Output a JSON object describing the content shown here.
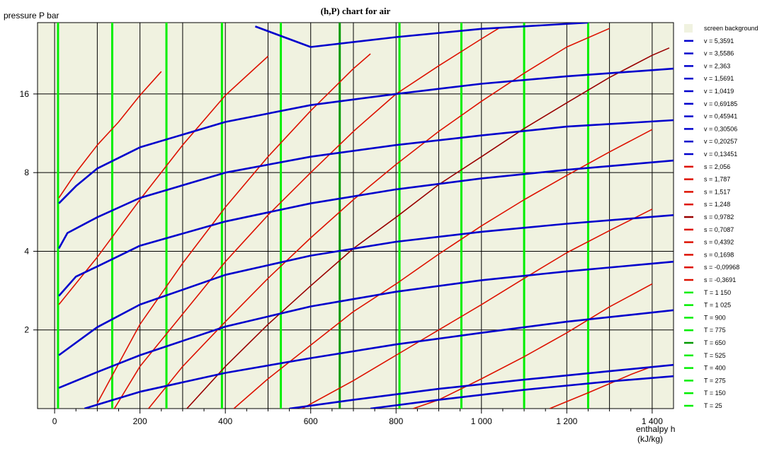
{
  "chart_data": {
    "type": "line",
    "title": "(h,P) chart for air",
    "xlabel_line1": "enthalpy  h",
    "xlabel_line2": "(kJ/kg)",
    "ylabel": "pressure  P bar",
    "xlim": [
      -40,
      1450
    ],
    "ylim": [
      1,
      30
    ],
    "y_scale": "log",
    "grid": true,
    "legend_position": "right",
    "x_ticks": [
      {
        "value": 0,
        "label": "0"
      },
      {
        "value": 200,
        "label": "200"
      },
      {
        "value": 400,
        "label": "400"
      },
      {
        "value": 600,
        "label": "600"
      },
      {
        "value": 800,
        "label": "800"
      },
      {
        "value": 1000,
        "label": "1 000"
      },
      {
        "value": 1200,
        "label": "1 200"
      },
      {
        "value": 1400,
        "label": "1 400"
      }
    ],
    "y_ticks": [
      {
        "value": 2,
        "label": "2"
      },
      {
        "value": 4,
        "label": "4"
      },
      {
        "value": 8,
        "label": "8"
      },
      {
        "value": 16,
        "label": "16"
      }
    ],
    "colors": {
      "background": "#F0F2E0",
      "isochore": "#0000CC",
      "isentrope": "#DD1100",
      "isentrope_dark": "#990000",
      "isotherm": "#00EE00",
      "isotherm_dark": "#009900",
      "grid": "#000000"
    },
    "legend": [
      {
        "label": "screen background",
        "kind": "swatch",
        "color": "#F0F2E0"
      },
      {
        "label": "v = 5,3591",
        "color": "#0000CC"
      },
      {
        "label": "v = 3,5586",
        "color": "#0000CC"
      },
      {
        "label": "v = 2,363",
        "color": "#0000CC"
      },
      {
        "label": "v = 1,5691",
        "color": "#0000CC"
      },
      {
        "label": "v = 1,0419",
        "color": "#0000CC"
      },
      {
        "label": "v = 0,69185",
        "color": "#0000CC"
      },
      {
        "label": "v = 0,45941",
        "color": "#0000CC"
      },
      {
        "label": "v = 0,30506",
        "color": "#0000CC"
      },
      {
        "label": "v = 0,20257",
        "color": "#0000CC"
      },
      {
        "label": "v = 0,13451",
        "color": "#0000CC"
      },
      {
        "label": "s = 2,056",
        "color": "#DD1100"
      },
      {
        "label": "s = 1,787",
        "color": "#DD1100"
      },
      {
        "label": "s = 1,517",
        "color": "#DD1100"
      },
      {
        "label": "s = 1,248",
        "color": "#DD1100"
      },
      {
        "label": "s = 0,9782",
        "color": "#990000"
      },
      {
        "label": "s = 0,7087",
        "color": "#DD1100"
      },
      {
        "label": "s = 0,4392",
        "color": "#DD1100"
      },
      {
        "label": "s = 0,1698",
        "color": "#DD1100"
      },
      {
        "label": "s = -0,09968",
        "color": "#DD1100"
      },
      {
        "label": "s = -0,3691",
        "color": "#DD1100"
      },
      {
        "label": "T = 1 150",
        "color": "#00EE00"
      },
      {
        "label": "T = 1 025",
        "color": "#00EE00"
      },
      {
        "label": "T = 900",
        "color": "#00EE00"
      },
      {
        "label": "T = 775",
        "color": "#00EE00"
      },
      {
        "label": "T = 650",
        "color": "#009900"
      },
      {
        "label": "T = 525",
        "color": "#00EE00"
      },
      {
        "label": "T = 400",
        "color": "#00EE00"
      },
      {
        "label": "T = 275",
        "color": "#00EE00"
      },
      {
        "label": "T = 150",
        "color": "#00EE00"
      },
      {
        "label": "T = 25",
        "color": "#00EE00"
      }
    ],
    "isotherms": [
      {
        "name": "T = 25",
        "h": 8,
        "color": "#00EE00"
      },
      {
        "name": "T = 150",
        "h": 135,
        "color": "#00EE00"
      },
      {
        "name": "T = 275",
        "h": 262,
        "color": "#00EE00"
      },
      {
        "name": "T = 400",
        "h": 392,
        "color": "#00EE00"
      },
      {
        "name": "T = 525",
        "h": 530,
        "color": "#00EE00"
      },
      {
        "name": "T = 650",
        "h": 668,
        "color": "#009900"
      },
      {
        "name": "T = 775",
        "h": 808,
        "color": "#00EE00"
      },
      {
        "name": "T = 900",
        "h": 953,
        "color": "#00EE00"
      },
      {
        "name": "T = 1 025",
        "h": 1100,
        "color": "#00EE00"
      },
      {
        "name": "T = 1 150",
        "h": 1250,
        "color": "#00EE00"
      }
    ],
    "isochores": [
      {
        "name": "v = 5,3591",
        "color": "#0000CC",
        "points": [
          [
            740,
            1
          ],
          [
            900,
            1.08
          ],
          [
            1100,
            1.18
          ],
          [
            1300,
            1.27
          ],
          [
            1450,
            1.33
          ]
        ]
      },
      {
        "name": "v = 3,5586",
        "color": "#0000CC",
        "points": [
          [
            550,
            1
          ],
          [
            700,
            1.08
          ],
          [
            900,
            1.19
          ],
          [
            1100,
            1.29
          ],
          [
            1300,
            1.39
          ],
          [
            1450,
            1.47
          ]
        ]
      },
      {
        "name": "v = 2,363",
        "color": "#0000CC",
        "points": [
          [
            70,
            1
          ],
          [
            200,
            1.16
          ],
          [
            400,
            1.37
          ],
          [
            600,
            1.56
          ],
          [
            800,
            1.76
          ],
          [
            1000,
            1.95
          ],
          [
            1200,
            2.15
          ],
          [
            1450,
            2.38
          ]
        ]
      },
      {
        "name": "v = 1,5691",
        "color": "#0000CC",
        "points": [
          [
            10,
            1.2
          ],
          [
            100,
            1.38
          ],
          [
            200,
            1.6
          ],
          [
            400,
            2.06
          ],
          [
            600,
            2.46
          ],
          [
            800,
            2.8
          ],
          [
            1000,
            3.1
          ],
          [
            1200,
            3.35
          ],
          [
            1450,
            3.65
          ]
        ]
      },
      {
        "name": "v = 1,0419",
        "color": "#0000CC",
        "points": [
          [
            10,
            1.6
          ],
          [
            100,
            2.05
          ],
          [
            200,
            2.5
          ],
          [
            400,
            3.25
          ],
          [
            600,
            3.85
          ],
          [
            800,
            4.35
          ],
          [
            1000,
            4.75
          ],
          [
            1200,
            5.1
          ],
          [
            1450,
            5.5
          ]
        ]
      },
      {
        "name": "v = 0,69185",
        "color": "#0000CC",
        "points": [
          [
            10,
            2.7
          ],
          [
            50,
            3.2
          ],
          [
            100,
            3.5
          ],
          [
            200,
            4.2
          ],
          [
            400,
            5.2
          ],
          [
            600,
            6.1
          ],
          [
            800,
            6.9
          ],
          [
            1000,
            7.6
          ],
          [
            1200,
            8.2
          ],
          [
            1450,
            8.9
          ]
        ]
      },
      {
        "name": "v = 0,45941",
        "color": "#0000CC",
        "points": [
          [
            10,
            4.1
          ],
          [
            30,
            4.7
          ],
          [
            100,
            5.4
          ],
          [
            200,
            6.4
          ],
          [
            400,
            8.0
          ],
          [
            600,
            9.2
          ],
          [
            800,
            10.2
          ],
          [
            1000,
            11.1
          ],
          [
            1200,
            12.0
          ],
          [
            1450,
            12.7
          ]
        ]
      },
      {
        "name": "v = 0,30506",
        "color": "#0000CC",
        "points": [
          [
            10,
            6.1
          ],
          [
            50,
            7.1
          ],
          [
            100,
            8.3
          ],
          [
            200,
            10.0
          ],
          [
            400,
            12.5
          ],
          [
            600,
            14.5
          ],
          [
            800,
            16.0
          ],
          [
            1000,
            17.5
          ],
          [
            1200,
            18.7
          ],
          [
            1450,
            20.0
          ]
        ]
      },
      {
        "name": "v = 0,20257",
        "color": "#0000CC",
        "points": [
          [
            470,
            29.0
          ],
          [
            600,
            24.2
          ],
          [
            800,
            26.4
          ],
          [
            1000,
            28.4
          ],
          [
            1250,
            30.0
          ]
        ]
      },
      {
        "name": "v = 0,13451",
        "color": "#0000CC",
        "points": []
      }
    ],
    "isentropes": [
      {
        "name": "s = 2,056",
        "color": "#DD1100",
        "points": [
          [
            1160,
            1
          ],
          [
            1250,
            1.15
          ],
          [
            1350,
            1.35
          ],
          [
            1400,
            1.45
          ]
        ]
      },
      {
        "name": "s = 1,787",
        "color": "#DD1100",
        "points": [
          [
            840,
            1
          ],
          [
            900,
            1.08
          ],
          [
            1000,
            1.3
          ],
          [
            1100,
            1.58
          ],
          [
            1200,
            1.95
          ],
          [
            1300,
            2.45
          ],
          [
            1400,
            3.0
          ]
        ]
      },
      {
        "name": "s = 1,517",
        "color": "#DD1100",
        "points": [
          [
            580,
            1
          ],
          [
            700,
            1.28
          ],
          [
            800,
            1.6
          ],
          [
            900,
            2.0
          ],
          [
            1000,
            2.5
          ],
          [
            1100,
            3.15
          ],
          [
            1200,
            3.95
          ],
          [
            1300,
            4.8
          ],
          [
            1400,
            5.8
          ]
        ]
      },
      {
        "name": "s = 1,248",
        "color": "#DD1100",
        "points": [
          [
            420,
            1
          ],
          [
            500,
            1.3
          ],
          [
            600,
            1.75
          ],
          [
            700,
            2.35
          ],
          [
            800,
            3.0
          ],
          [
            900,
            3.9
          ],
          [
            1000,
            5.0
          ],
          [
            1100,
            6.3
          ],
          [
            1200,
            7.8
          ],
          [
            1300,
            9.6
          ],
          [
            1400,
            11.7
          ]
        ]
      },
      {
        "name": "s = 0,9782",
        "color": "#990000",
        "points": [
          [
            310,
            1
          ],
          [
            400,
            1.45
          ],
          [
            500,
            2.1
          ],
          [
            600,
            2.95
          ],
          [
            700,
            4.1
          ],
          [
            800,
            5.4
          ],
          [
            900,
            7.2
          ],
          [
            1000,
            9.2
          ],
          [
            1100,
            11.8
          ],
          [
            1200,
            14.8
          ],
          [
            1300,
            18.5
          ],
          [
            1400,
            22.5
          ],
          [
            1440,
            24.0
          ]
        ]
      },
      {
        "name": "s = 0,7087",
        "color": "#DD1100",
        "points": [
          [
            220,
            1
          ],
          [
            300,
            1.45
          ],
          [
            400,
            2.15
          ],
          [
            500,
            3.15
          ],
          [
            600,
            4.5
          ],
          [
            700,
            6.3
          ],
          [
            800,
            8.6
          ],
          [
            900,
            11.5
          ],
          [
            1000,
            15.0
          ],
          [
            1100,
            19.2
          ],
          [
            1200,
            24.2
          ],
          [
            1300,
            28.5
          ]
        ]
      },
      {
        "name": "s = 0,4392",
        "color": "#DD1100",
        "points": [
          [
            140,
            1
          ],
          [
            200,
            1.45
          ],
          [
            300,
            2.3
          ],
          [
            400,
            3.65
          ],
          [
            500,
            5.5
          ],
          [
            600,
            8.0
          ],
          [
            700,
            11.5
          ],
          [
            800,
            16.0
          ],
          [
            900,
            20.5
          ],
          [
            1000,
            26.0
          ],
          [
            1040,
            28.5
          ]
        ]
      },
      {
        "name": "s = 0,1698",
        "color": "#DD1100",
        "points": [
          [
            100,
            1.05
          ],
          [
            200,
            2.1
          ],
          [
            300,
            3.6
          ],
          [
            400,
            5.9
          ],
          [
            500,
            9.2
          ],
          [
            600,
            13.8
          ],
          [
            700,
            20.0
          ],
          [
            740,
            22.8
          ]
        ]
      },
      {
        "name": "s = -0,09968",
        "color": "#DD1100",
        "points": [
          [
            10,
            2.5
          ],
          [
            100,
            3.8
          ],
          [
            200,
            6.3
          ],
          [
            300,
            10.2
          ],
          [
            400,
            15.8
          ],
          [
            500,
            22.3
          ]
        ]
      },
      {
        "name": "s = -0,3691",
        "color": "#DD1100",
        "points": [
          [
            10,
            6.4
          ],
          [
            50,
            8.0
          ],
          [
            100,
            10.2
          ],
          [
            150,
            12.5
          ],
          [
            200,
            15.8
          ],
          [
            250,
            19.5
          ]
        ]
      }
    ]
  }
}
